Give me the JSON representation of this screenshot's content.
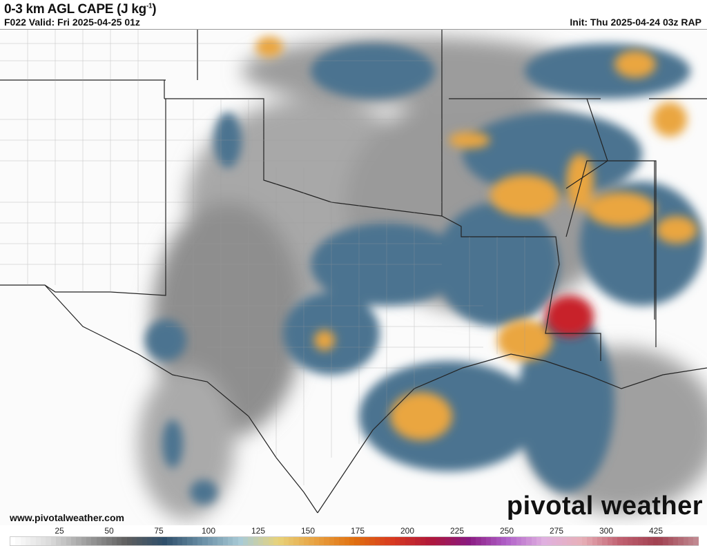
{
  "header": {
    "title": "0-3 km AGL CAPE (J kg",
    "title_sup": "-1",
    "title_end": ")",
    "valid": "F022 Valid: Fri 2025-04-25 01z",
    "init": "Init: Thu 2025-04-24 03z RAP"
  },
  "footer": {
    "website": "www.pivotalweather.com",
    "logo": "pivotal weather"
  },
  "colorbar": {
    "labels": [
      "25",
      "50",
      "75",
      "100",
      "125",
      "150",
      "175",
      "200",
      "225",
      "250",
      "275",
      "300",
      "425"
    ],
    "color_stops": [
      "#ffffff",
      "#d9d9d9",
      "#9a9a9a",
      "#5e5e5e",
      "#2f4f6b",
      "#6a8fa6",
      "#a9cbd6",
      "#e8d27a",
      "#e8a040",
      "#e07010",
      "#d83a20",
      "#b0183a",
      "#8a1a80",
      "#b060c8",
      "#e0b0e0",
      "#e8b0b8",
      "#c06070",
      "#a04050",
      "#c08890"
    ]
  }
}
